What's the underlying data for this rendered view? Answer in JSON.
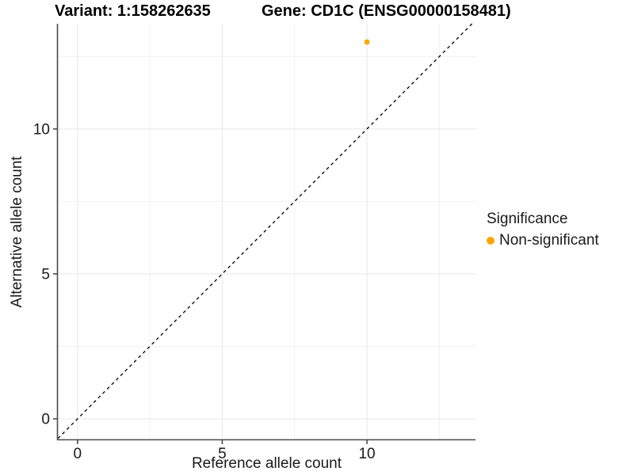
{
  "chart_data": {
    "type": "scatter",
    "titles": [
      "Variant: 1:158262635",
      "Gene: CD1C (ENSG00000158481)"
    ],
    "xlabel": "Reference allele count",
    "ylabel": "Alternative allele count",
    "xlim": [
      -0.68,
      13.75
    ],
    "ylim": [
      -0.71,
      13.63
    ],
    "x_ticks": [
      0,
      5,
      10
    ],
    "y_ticks": [
      0,
      5,
      10
    ],
    "x_minor_ticks": [
      2.5,
      7.5,
      12.5
    ],
    "y_minor_ticks": [
      2.5,
      7.5,
      12.5
    ],
    "grid": "major+minor",
    "series": [
      {
        "name": "Non-significant",
        "marker": "circle",
        "color": "#FFA500",
        "points": [
          [
            10,
            13
          ]
        ]
      }
    ],
    "reference_line": {
      "kind": "identity y=x",
      "style": "dashed",
      "color": "#000000"
    },
    "legend": {
      "title": "Significance",
      "position": "right",
      "items": [
        {
          "label": "Non-significant",
          "color": "#FFA500"
        }
      ]
    }
  },
  "style": {
    "background": "#FFFFFF",
    "grid_major_color": "#E7E7E7",
    "grid_minor_color": "#F1F1F1",
    "axis_color": "#4A4A4A",
    "tick_label_color": "#1A1A1A",
    "point_color": "#FFA500"
  }
}
